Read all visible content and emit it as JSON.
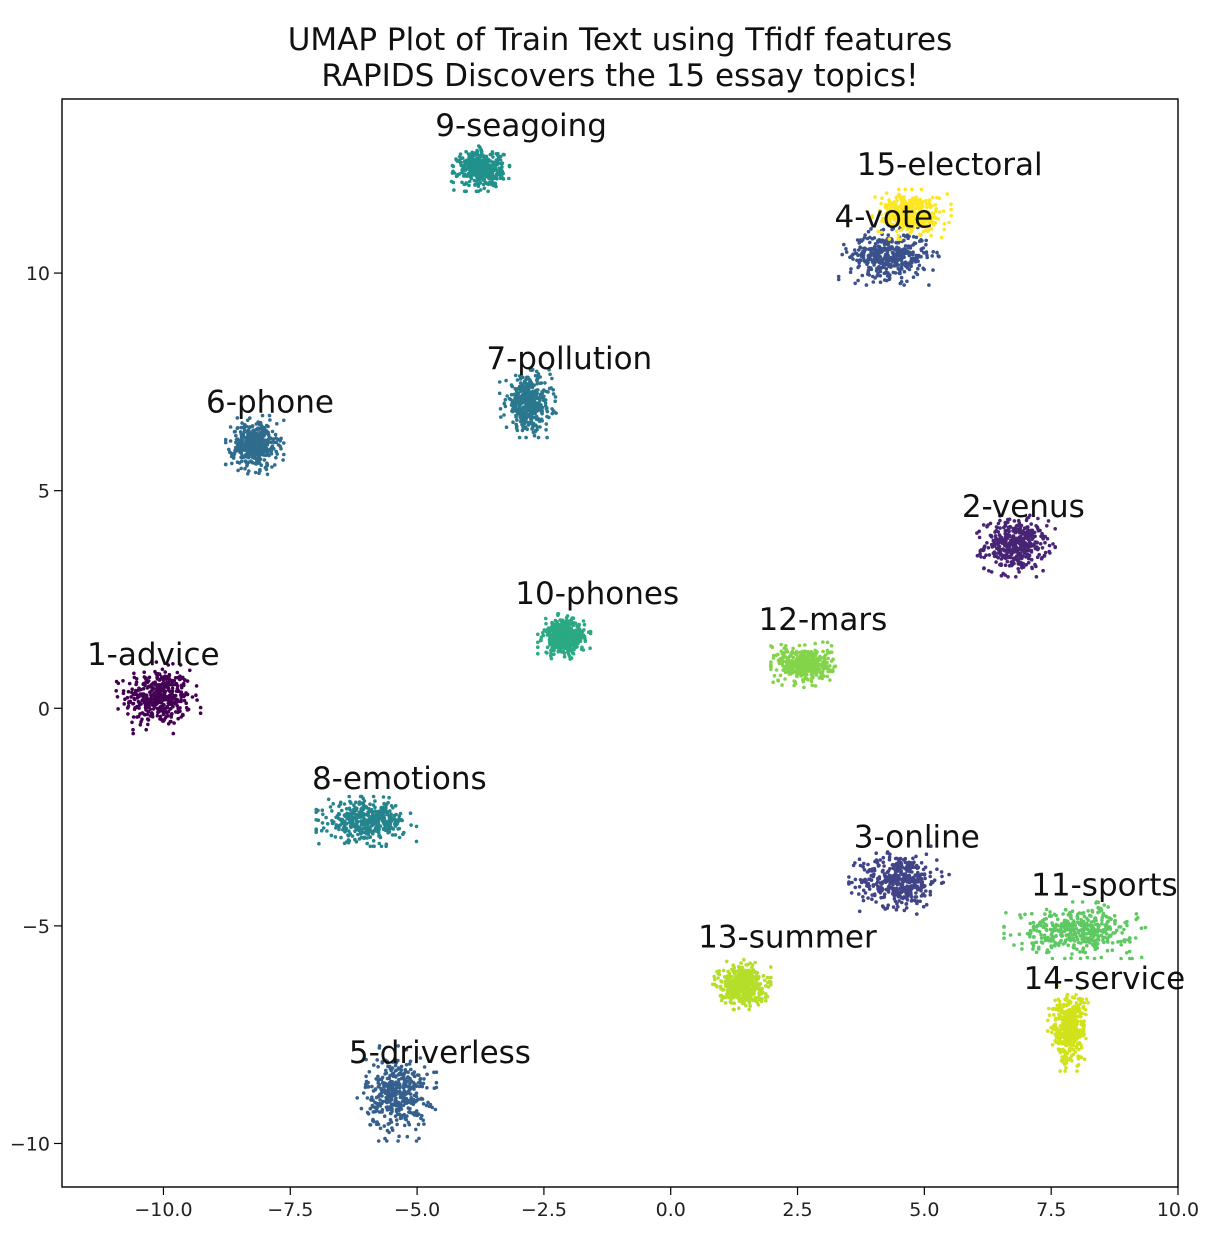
{
  "chart_data": {
    "type": "scatter",
    "title": [
      "UMAP Plot of Train Text using Tfidf features",
      "RAPIDS Discovers the 15 essay topics!"
    ],
    "xlabel": "",
    "ylabel": "",
    "xlim": [
      -12,
      10
    ],
    "ylim": [
      -11,
      14
    ],
    "xticks": [
      -10.0,
      -7.5,
      -5.0,
      -2.5,
      0.0,
      2.5,
      5.0,
      7.5,
      10.0
    ],
    "xtick_labels": [
      "−10.0",
      "−7.5",
      "−5.0",
      "−2.5",
      "0.0",
      "2.5",
      "5.0",
      "7.5",
      "10.0"
    ],
    "yticks": [
      -10,
      -5,
      0,
      5,
      10
    ],
    "ytick_labels": [
      "−10",
      "−5",
      "0",
      "5",
      "10"
    ],
    "grid": false,
    "legend": false,
    "clusters": [
      {
        "label": "1-advice",
        "x": -10.1,
        "y": 0.25,
        "sx": 0.32,
        "sy": 0.32,
        "color": "#440154",
        "label_x": -10.2,
        "label_y": 1.0
      },
      {
        "label": "2-venus",
        "x": 6.8,
        "y": 3.75,
        "sx": 0.3,
        "sy": 0.28,
        "color": "#482475",
        "label_x": 6.95,
        "label_y": 4.4
      },
      {
        "label": "3-online",
        "x": 4.5,
        "y": -3.95,
        "sx": 0.38,
        "sy": 0.3,
        "color": "#414487",
        "label_x": 4.85,
        "label_y": -3.2
      },
      {
        "label": "4-vote",
        "x": 4.3,
        "y": 10.4,
        "sx": 0.38,
        "sy": 0.26,
        "color": "#3b518b",
        "label_x": 4.2,
        "label_y": 11.05
      },
      {
        "label": "5-driverless",
        "x": -5.4,
        "y": -8.85,
        "sx": 0.3,
        "sy": 0.42,
        "color": "#355f8d",
        "label_x": -4.55,
        "label_y": -8.15
      },
      {
        "label": "6-phone",
        "x": -8.2,
        "y": 6.05,
        "sx": 0.22,
        "sy": 0.26,
        "color": "#2f6c8e",
        "label_x": -7.9,
        "label_y": 6.8
      },
      {
        "label": "7-pollution",
        "x": -2.8,
        "y": 7.0,
        "sx": 0.22,
        "sy": 0.3,
        "color": "#2a788e",
        "label_x": -2.0,
        "label_y": 7.8
      },
      {
        "label": "8-emotions",
        "x": -6.0,
        "y": -2.6,
        "sx": 0.38,
        "sy": 0.22,
        "color": "#25858e",
        "label_x": -5.35,
        "label_y": -1.85
      },
      {
        "label": "9-seagoing",
        "x": -3.75,
        "y": 12.4,
        "sx": 0.22,
        "sy": 0.2,
        "color": "#21918c",
        "label_x": -2.95,
        "label_y": 13.15
      },
      {
        "label": "10-phones",
        "x": -2.1,
        "y": 1.65,
        "sx": 0.2,
        "sy": 0.2,
        "color": "#2aa983",
        "label_x": -1.45,
        "label_y": 2.4
      },
      {
        "label": "11-sports",
        "x": 8.0,
        "y": -5.1,
        "sx": 0.55,
        "sy": 0.25,
        "color": "#5ec962",
        "label_x": 8.55,
        "label_y": -4.3
      },
      {
        "label": "12-mars",
        "x": 2.65,
        "y": 1.0,
        "sx": 0.26,
        "sy": 0.2,
        "color": "#84d44b",
        "label_x": 3.0,
        "label_y": 1.8
      },
      {
        "label": "13-summer",
        "x": 1.4,
        "y": -6.35,
        "sx": 0.22,
        "sy": 0.22,
        "color": "#b5de2b",
        "label_x": 2.3,
        "label_y": -5.5
      },
      {
        "label": "14-service",
        "x": 7.85,
        "y": -7.35,
        "sx": 0.16,
        "sy": 0.38,
        "color": "#d2e21b",
        "label_x": 8.55,
        "label_y": -6.45
      },
      {
        "label": "15-electoral",
        "x": 4.75,
        "y": 11.35,
        "sx": 0.3,
        "sy": 0.22,
        "color": "#fde725",
        "label_x": 5.5,
        "label_y": 12.25
      }
    ]
  }
}
